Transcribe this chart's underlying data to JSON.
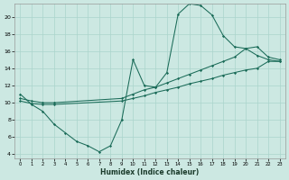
{
  "xlabel": "Humidex (Indice chaleur)",
  "bg_color": "#cce8e2",
  "grid_color": "#aad4cc",
  "line_color": "#1a6b58",
  "xlim": [
    -0.5,
    23.5
  ],
  "ylim": [
    3.5,
    21.5
  ],
  "xticks": [
    0,
    1,
    2,
    3,
    4,
    5,
    6,
    7,
    8,
    9,
    10,
    11,
    12,
    13,
    14,
    15,
    16,
    17,
    18,
    19,
    20,
    21,
    22,
    23
  ],
  "yticks": [
    4,
    6,
    8,
    10,
    12,
    14,
    16,
    18,
    20
  ],
  "line1_x": [
    0,
    1,
    2,
    3,
    4,
    5,
    6,
    7,
    8,
    9,
    10,
    11,
    12,
    13,
    14,
    15,
    16,
    17,
    18,
    19,
    20,
    21,
    22,
    23
  ],
  "line1_y": [
    11.0,
    9.8,
    9.0,
    7.5,
    6.5,
    5.5,
    5.0,
    4.3,
    5.0,
    8.0,
    15.0,
    12.0,
    11.8,
    13.5,
    20.3,
    21.5,
    21.3,
    20.2,
    17.8,
    16.5,
    16.3,
    15.5,
    15.0,
    14.8
  ],
  "line2_x": [
    0,
    1,
    2,
    3,
    9,
    10,
    11,
    12,
    13,
    14,
    15,
    16,
    17,
    18,
    19,
    20,
    21,
    22,
    23
  ],
  "line2_y": [
    10.5,
    10.2,
    10.0,
    10.0,
    10.5,
    11.0,
    11.5,
    11.8,
    12.3,
    12.8,
    13.3,
    13.8,
    14.3,
    14.8,
    15.3,
    16.3,
    16.5,
    15.3,
    15.0
  ],
  "line3_x": [
    0,
    1,
    2,
    3,
    9,
    10,
    11,
    12,
    13,
    14,
    15,
    16,
    17,
    18,
    19,
    20,
    21,
    22,
    23
  ],
  "line3_y": [
    10.2,
    9.9,
    9.8,
    9.8,
    10.2,
    10.5,
    10.8,
    11.2,
    11.5,
    11.8,
    12.2,
    12.5,
    12.8,
    13.2,
    13.5,
    13.8,
    14.0,
    14.8,
    14.8
  ]
}
